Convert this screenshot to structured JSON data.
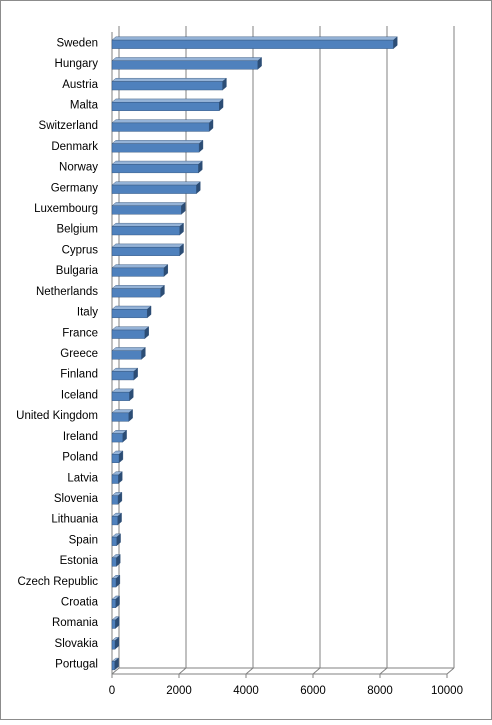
{
  "chart_data": {
    "type": "bar",
    "orientation": "horizontal",
    "title": "",
    "xlabel": "",
    "ylabel": "",
    "categories": [
      "Sweden",
      "Hungary",
      "Austria",
      "Malta",
      "Switzerland",
      "Denmark",
      "Norway",
      "Germany",
      "Luxembourg",
      "Belgium",
      "Cyprus",
      "Bulgaria",
      "Netherlands",
      "Italy",
      "France",
      "Greece",
      "Finland",
      "Iceland",
      "United Kingdom",
      "Ireland",
      "Poland",
      "Latvia",
      "Slovenia",
      "Lithuania",
      "Spain",
      "Estonia",
      "Czech Republic",
      "Croatia",
      "Romania",
      "Slovakia",
      "Portugal"
    ],
    "values": [
      8400,
      4350,
      3300,
      3200,
      2900,
      2600,
      2580,
      2520,
      2070,
      2020,
      2020,
      1550,
      1450,
      1050,
      980,
      880,
      650,
      520,
      500,
      320,
      210,
      190,
      180,
      170,
      140,
      130,
      120,
      110,
      100,
      90,
      80
    ],
    "xlim": [
      0,
      10000
    ],
    "xticks": [
      0,
      2000,
      4000,
      6000,
      8000,
      10000
    ],
    "grid": true,
    "legend": "none",
    "colors": {
      "bar_front": "#4F81BD",
      "bar_top": "#95B3D7",
      "bar_side": "#2C4D75",
      "grid": "#808080",
      "border": "#8C8C8C"
    }
  }
}
